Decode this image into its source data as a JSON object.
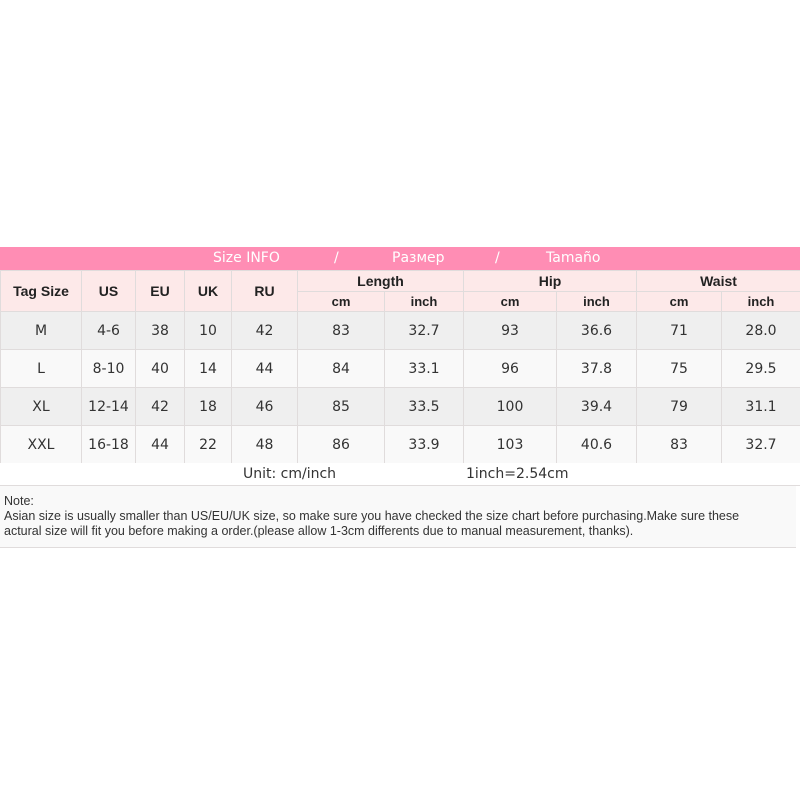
{
  "banner": {
    "title": "Size INFO",
    "sep1": "/",
    "ru": "Размер",
    "sep2": "/",
    "es": "Tamaño"
  },
  "headers": {
    "tag_size": "Tag Size",
    "us": "US",
    "eu": "EU",
    "uk": "UK",
    "ru": "RU",
    "length": "Length",
    "hip": "Hip",
    "waist": "Waist",
    "cm": "cm",
    "inch": "inch"
  },
  "rows": [
    [
      "M",
      "4-6",
      "38",
      "10",
      "42",
      "83",
      "32.7",
      "93",
      "36.6",
      "71",
      "28.0"
    ],
    [
      "L",
      "8-10",
      "40",
      "14",
      "44",
      "84",
      "33.1",
      "96",
      "37.8",
      "75",
      "29.5"
    ],
    [
      "XL",
      "12-14",
      "42",
      "18",
      "46",
      "85",
      "33.5",
      "100",
      "39.4",
      "79",
      "31.1"
    ],
    [
      "XXL",
      "16-18",
      "44",
      "22",
      "48",
      "86",
      "33.9",
      "103",
      "40.6",
      "83",
      "32.7"
    ]
  ],
  "unit": {
    "label": "Unit: cm/inch",
    "conversion": "1inch=2.54cm"
  },
  "note": {
    "title": "Note:",
    "line1": "Asian size is usually smaller than US/EU/UK size, so make sure you have checked the size chart before purchasing.Make sure these",
    "line2": "actural size will fit you before making a order.(please allow 1-3cm differents due to manual measurement, thanks)."
  }
}
